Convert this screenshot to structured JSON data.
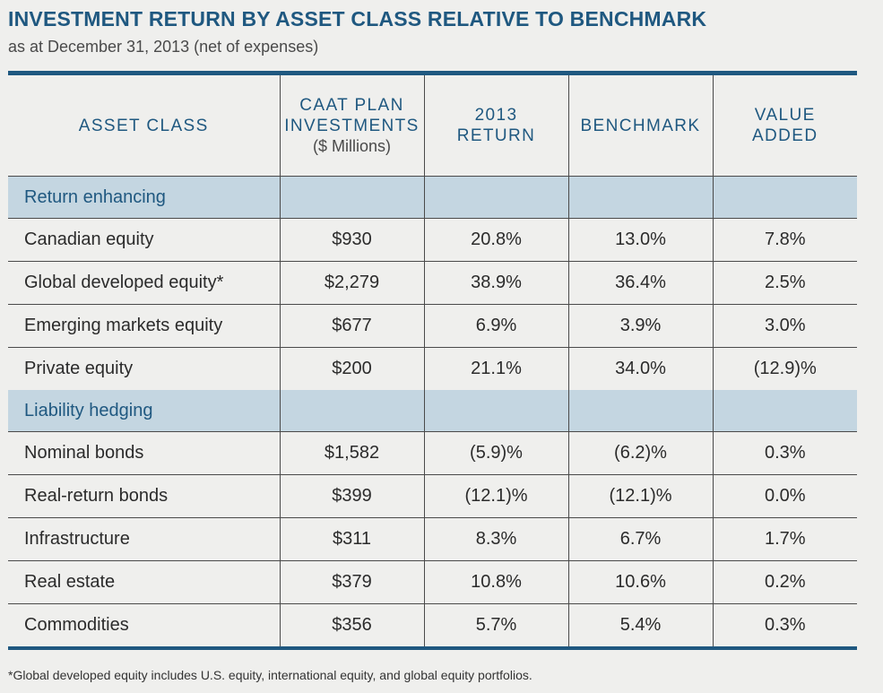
{
  "title": "INVESTMENT RETURN BY ASSET CLASS RELATIVE TO BENCHMARK",
  "subtitle": "as at December 31, 2013 (net of expenses)",
  "headers": {
    "asset_class": "ASSET CLASS",
    "investments_line1": "CAAT PLAN",
    "investments_line2": "INVESTMENTS",
    "investments_unit": "($ Millions)",
    "return_line1": "2013",
    "return_line2": "RETURN",
    "benchmark": "BENCHMARK",
    "value_added_line1": "VALUE",
    "value_added_line2": "ADDED"
  },
  "sections": [
    {
      "name": "Return enhancing",
      "rows": [
        {
          "asset": "Canadian equity",
          "investments": "$930",
          "return": "20.8%",
          "benchmark": "13.0%",
          "value_added": "7.8%"
        },
        {
          "asset": "Global developed equity*",
          "investments": "$2,279",
          "return": "38.9%",
          "benchmark": "36.4%",
          "value_added": "2.5%"
        },
        {
          "asset": "Emerging markets equity",
          "investments": "$677",
          "return": "6.9%",
          "benchmark": "3.9%",
          "value_added": "3.0%"
        },
        {
          "asset": "Private equity",
          "investments": "$200",
          "return": "21.1%",
          "benchmark": "34.0%",
          "value_added": "(12.9)%"
        }
      ]
    },
    {
      "name": "Liability hedging",
      "rows": [
        {
          "asset": "Nominal bonds",
          "investments": "$1,582",
          "return": "(5.9)%",
          "benchmark": "(6.2)%",
          "value_added": "0.3%"
        },
        {
          "asset": "Real-return bonds",
          "investments": "$399",
          "return": "(12.1)%",
          "benchmark": "(12.1)%",
          "value_added": "0.0%"
        },
        {
          "asset": "Infrastructure",
          "investments": "$311",
          "return": "8.3%",
          "benchmark": "6.7%",
          "value_added": "1.7%"
        },
        {
          "asset": "Real estate",
          "investments": "$379",
          "return": "10.8%",
          "benchmark": "10.6%",
          "value_added": "0.2%"
        },
        {
          "asset": "Commodities",
          "investments": "$356",
          "return": "5.7%",
          "benchmark": "5.4%",
          "value_added": "0.3%"
        }
      ]
    }
  ],
  "footnote": "*Global developed equity includes U.S. equity, international equity, and global equity portfolios.",
  "colors": {
    "accent": "#1f5880",
    "section_band": "#c4d6e1",
    "background": "#efefed"
  }
}
